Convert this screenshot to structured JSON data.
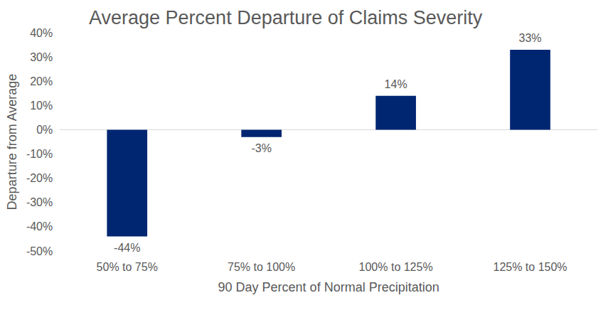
{
  "chart_data": {
    "type": "bar",
    "title": "Average Percent Departure of Claims Severity",
    "x_label": "90 Day Percent of Normal Precipitation",
    "y_label": "Departure from Average",
    "categories": [
      "50% to 75%",
      "75% to 100%",
      "100% to 125%",
      "125% to 150%"
    ],
    "values": [
      -44,
      -3,
      14,
      33
    ],
    "value_labels": [
      "-44%",
      "-3%",
      "14%",
      "33%"
    ],
    "color": "#002672",
    "ylim": [
      -50,
      40
    ],
    "yticks": [
      {
        "value": -50,
        "label": "-50%"
      },
      {
        "value": -40,
        "label": "-40%"
      },
      {
        "value": -30,
        "label": "-30%"
      },
      {
        "value": -20,
        "label": "-20%"
      },
      {
        "value": -10,
        "label": "-10%"
      },
      {
        "value": 0,
        "label": "0%"
      },
      {
        "value": 10,
        "label": "10%"
      },
      {
        "value": 20,
        "label": "20%"
      },
      {
        "value": 30,
        "label": "30%"
      },
      {
        "value": 40,
        "label": "40%"
      }
    ],
    "grid": false,
    "data_labels": true
  }
}
